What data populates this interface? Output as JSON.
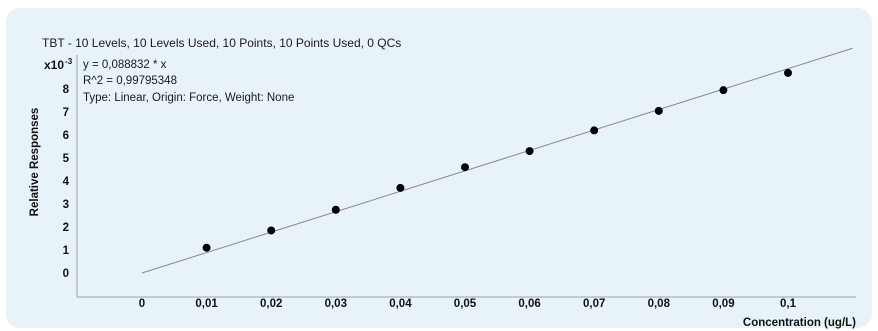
{
  "chart_data": {
    "type": "scatter",
    "title": "TBT - 10 Levels, 10 Levels Used, 10 Points, 10 Points Used, 0 QCs",
    "annotations": [
      "y = 0,088832 * x",
      "R^2 = 0,99795348",
      "Type: Linear, Origin: Force, Weight: None"
    ],
    "xlabel": "Concentration (ug/L)",
    "ylabel": "Relative Responses",
    "y_multiplier": {
      "base": "x10",
      "exponent": "-3"
    },
    "x_ticks": [
      "0",
      "0,01",
      "0,02",
      "0,03",
      "0,04",
      "0,05",
      "0,06",
      "0,07",
      "0,08",
      "0,09",
      "0,1"
    ],
    "y_ticks": [
      "0",
      "1",
      "2",
      "3",
      "4",
      "5",
      "6",
      "7",
      "8"
    ],
    "xlim": [
      -0.01,
      0.11
    ],
    "ylim": [
      -1.2,
      9.2
    ],
    "fit_line": {
      "slope": 88.832,
      "x_range": [
        0,
        0.11
      ]
    },
    "series": [
      {
        "x": [
          0.01,
          0.02,
          0.03,
          0.04,
          0.05,
          0.06,
          0.07,
          0.08,
          0.09,
          0.1
        ],
        "y": [
          1.1,
          1.85,
          2.75,
          3.7,
          4.6,
          5.3,
          6.2,
          7.05,
          7.95,
          8.7
        ]
      }
    ],
    "grid": false,
    "colors": {
      "points": "#000000",
      "line": "#888888",
      "background": "#e8f3f9"
    }
  }
}
